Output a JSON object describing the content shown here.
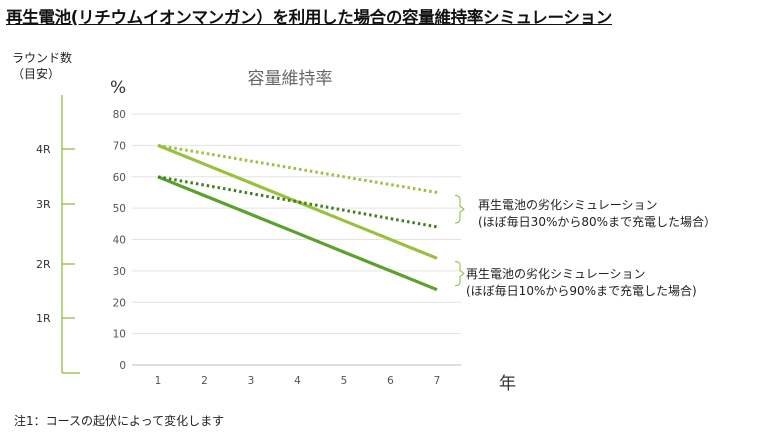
{
  "page_title": "再生電池(リチウムイオンマンガン）を利用した場合の容量維持率シミュレーション",
  "footnote": "注1：コースの起伏によって変化します",
  "chart_data": {
    "type": "line",
    "title": "容量維持率",
    "ylabel": "%",
    "xlabel": "年",
    "x": [
      1,
      2,
      3,
      4,
      5,
      6,
      7
    ],
    "ylim": [
      0,
      80
    ],
    "yticks": [
      0,
      10,
      20,
      30,
      40,
      50,
      60,
      70,
      80
    ],
    "grid": "horizontal",
    "series": [
      {
        "values": [
          70,
          64,
          58,
          52,
          46,
          40,
          34
        ],
        "color": "#99c13e",
        "style": "solid"
      },
      {
        "values": [
          60,
          54,
          48,
          42,
          36,
          30,
          24
        ],
        "color": "#5aa22b",
        "style": "solid"
      },
      {
        "values": [
          70,
          67.5,
          65,
          62.5,
          60,
          57.5,
          55
        ],
        "color": "#99c13e",
        "style": "dotted"
      },
      {
        "values": [
          60,
          57.33,
          54.67,
          52,
          49.33,
          46.67,
          44
        ],
        "color": "#3f7f20",
        "style": "dotted"
      }
    ],
    "annotations": [
      {
        "line1": "再生電池の劣化シミュレーション",
        "line2": "(ほぼ毎日30%から80%まで充電した場合）",
        "range": [
          44,
          55
        ]
      },
      {
        "line1": "再生電池の劣化シミュレーション",
        "line2": "(ほぼ毎日10%から90%まで充電した場合)",
        "range": [
          24,
          34
        ]
      }
    ],
    "left_axis": {
      "label_line1": "ラウンド数",
      "label_line2": "（目安）",
      "ticks": [
        "4R",
        "3R",
        "2R",
        "1R"
      ],
      "color": "#8ab83a"
    }
  }
}
